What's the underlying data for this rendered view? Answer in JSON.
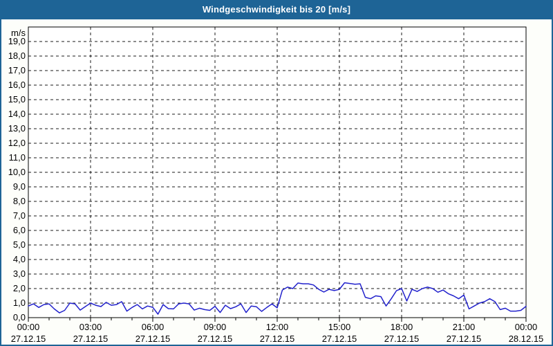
{
  "title_bar": {
    "title": "Windgeschwindigkeit bis 20 [m/s]"
  },
  "colors": {
    "titlebar_bg": "#1e6496",
    "titlebar_fg": "#ffffff",
    "window_border": "#1e6496",
    "body_bg": "#fdfefa",
    "plot_bg": "#ffffff",
    "grid": "#1a1a1a",
    "axis": "#000000",
    "tick_text": "#000000",
    "line": "#2121cc"
  },
  "chart_data": {
    "type": "line",
    "title": "Windgeschwindigkeit bis 20 [m/s]",
    "unit_label": "m/s",
    "ylim": [
      0,
      20
    ],
    "ytick_step": 1,
    "ytick_labels": [
      "0,0",
      "1,0",
      "2,0",
      "3,0",
      "4,0",
      "5,0",
      "6,0",
      "7,0",
      "8,0",
      "9,0",
      "10,0",
      "11,0",
      "12,0",
      "13,0",
      "14,0",
      "15,0",
      "16,0",
      "17,0",
      "18,0",
      "19,0"
    ],
    "grid": "dashed",
    "legend": "none",
    "x_axis": {
      "start_hour": 0,
      "end_hour": 24,
      "minor_tick_hours": 1,
      "major_tick_hours": 3,
      "major_labels": [
        {
          "time": "00:00",
          "date": "27.12.15"
        },
        {
          "time": "03:00",
          "date": "27.12.15"
        },
        {
          "time": "06:00",
          "date": "27.12.15"
        },
        {
          "time": "09:00",
          "date": "27.12.15"
        },
        {
          "time": "12:00",
          "date": "27.12.15"
        },
        {
          "time": "15:00",
          "date": "27.12.15"
        },
        {
          "time": "18:00",
          "date": "27.12.15"
        },
        {
          "time": "21:00",
          "date": "27.12.15"
        },
        {
          "time": "00:00",
          "date": "28.12.15"
        }
      ]
    },
    "series": [
      {
        "name": "Windgeschwindigkeit",
        "unit": "m/s",
        "sample_interval_minutes": 15,
        "values": [
          0.8,
          0.95,
          0.7,
          0.9,
          0.95,
          0.6,
          0.33,
          0.5,
          1.0,
          0.95,
          0.52,
          0.76,
          1.0,
          0.85,
          0.76,
          1.05,
          0.85,
          0.9,
          1.1,
          0.45,
          0.7,
          0.9,
          0.6,
          0.8,
          0.71,
          0.24,
          0.9,
          0.62,
          0.6,
          0.95,
          1.0,
          0.95,
          0.52,
          0.65,
          0.55,
          0.5,
          0.78,
          0.35,
          0.85,
          0.62,
          0.75,
          0.95,
          0.35,
          0.8,
          0.75,
          0.43,
          0.7,
          0.95,
          0.67,
          1.9,
          2.1,
          2.0,
          2.38,
          2.33,
          2.33,
          2.25,
          1.95,
          1.76,
          1.95,
          1.86,
          1.95,
          2.4,
          2.35,
          2.3,
          2.33,
          1.4,
          1.3,
          1.5,
          1.45,
          0.8,
          1.3,
          1.85,
          2.0,
          1.15,
          1.95,
          1.8,
          2.0,
          2.1,
          2.0,
          1.75,
          1.9,
          1.65,
          1.5,
          1.3,
          1.55,
          0.6,
          0.8,
          1.0,
          1.1,
          1.3,
          1.1,
          0.55,
          0.65,
          0.45,
          0.45,
          0.5,
          0.78
        ]
      }
    ]
  }
}
